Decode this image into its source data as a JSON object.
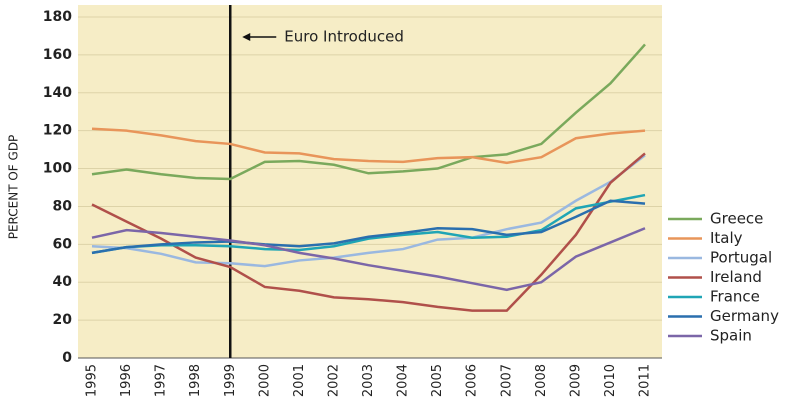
{
  "chart_data": {
    "type": "line",
    "y_label": "PERCENT OF GDP",
    "x": [
      1995,
      1996,
      1997,
      1998,
      1999,
      2000,
      2001,
      2002,
      2003,
      2004,
      2005,
      2006,
      2007,
      2008,
      2009,
      2010,
      2011
    ],
    "xlim": [
      1995,
      2011
    ],
    "ylim": [
      0,
      180
    ],
    "yticks": [
      0,
      20,
      40,
      60,
      80,
      100,
      120,
      140,
      160,
      180
    ],
    "grid": true,
    "legend": "right",
    "annotations": [
      {
        "text": "Euro Introduced",
        "x": 1999
      }
    ],
    "series": [
      {
        "name": "Greece",
        "color": "#7aa95c",
        "values": [
          97,
          99.5,
          97,
          95,
          94.5,
          103.5,
          104,
          102,
          97.5,
          98.5,
          100,
          106,
          107.5,
          113,
          129.5,
          145,
          165.5
        ]
      },
      {
        "name": "Italy",
        "color": "#e8955a",
        "values": [
          121,
          120,
          117.5,
          114.5,
          113,
          108.5,
          108,
          105,
          104,
          103.5,
          105.5,
          106,
          103,
          106,
          116,
          118.5,
          120
        ]
      },
      {
        "name": "Portugal",
        "color": "#9ab8e0",
        "values": [
          59,
          58,
          55,
          50.5,
          50,
          48.5,
          51.5,
          53,
          55.5,
          57.5,
          62.5,
          63.5,
          68,
          71.5,
          83,
          93,
          107
        ]
      },
      {
        "name": "Ireland",
        "color": "#b0504a",
        "values": [
          81,
          72,
          63,
          53,
          48,
          37.5,
          35.5,
          32,
          31,
          29.5,
          27,
          25,
          25,
          44,
          65,
          92.5,
          108
        ]
      },
      {
        "name": "France",
        "color": "#1fa5b5",
        "values": [
          55.5,
          58.5,
          59.5,
          59.5,
          59,
          57.5,
          57,
          59,
          63,
          65,
          66.5,
          63.5,
          64,
          67.5,
          79,
          82.5,
          86
        ]
      },
      {
        "name": "Germany",
        "color": "#2a6fae",
        "values": [
          55.5,
          58.5,
          60,
          61,
          61.5,
          60,
          59,
          60.5,
          64,
          66,
          68.5,
          68,
          65,
          66.5,
          74.5,
          83,
          81.5
        ]
      },
      {
        "name": "Spain",
        "color": "#7b66a8",
        "values": [
          63.5,
          67.5,
          66,
          64,
          62,
          59.5,
          55.5,
          52.5,
          49,
          46,
          43,
          39.5,
          36,
          40,
          53.5,
          61,
          68.5
        ]
      }
    ]
  }
}
